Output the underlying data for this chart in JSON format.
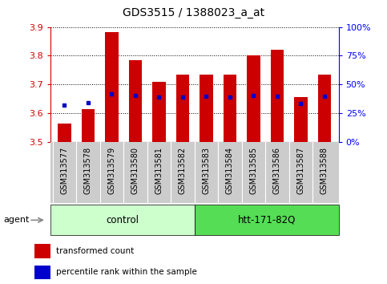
{
  "title": "GDS3515 / 1388023_a_at",
  "categories": [
    "GSM313577",
    "GSM313578",
    "GSM313579",
    "GSM313580",
    "GSM313581",
    "GSM313582",
    "GSM313583",
    "GSM313584",
    "GSM313585",
    "GSM313586",
    "GSM313587",
    "GSM313588"
  ],
  "red_values": [
    3.565,
    3.615,
    3.882,
    3.785,
    3.71,
    3.735,
    3.735,
    3.735,
    3.8,
    3.82,
    3.655,
    3.735
  ],
  "blue_values": [
    3.628,
    3.638,
    3.668,
    3.663,
    3.655,
    3.655,
    3.658,
    3.655,
    3.663,
    3.66,
    3.635,
    3.658
  ],
  "ymin": 3.5,
  "ymax": 3.9,
  "yticks_left": [
    3.5,
    3.6,
    3.7,
    3.8,
    3.9
  ],
  "yticks_right": [
    0,
    25,
    50,
    75,
    100
  ],
  "bar_color": "#cc0000",
  "dot_color": "#0000cc",
  "control_count": 6,
  "htt_count": 6,
  "control_label": "control",
  "htt_label": "htt-171-82Q",
  "agent_label": "agent",
  "legend_red": "transformed count",
  "legend_blue": "percentile rank within the sample",
  "control_bg": "#ccffcc",
  "htt_bg": "#55dd55",
  "xticklabel_bg": "#cccccc",
  "left_tick_color": "#cc0000",
  "right_tick_color": "#0000ff",
  "title_fontsize": 10,
  "tick_fontsize": 8,
  "xlabel_fontsize": 7,
  "legend_fontsize": 7.5
}
